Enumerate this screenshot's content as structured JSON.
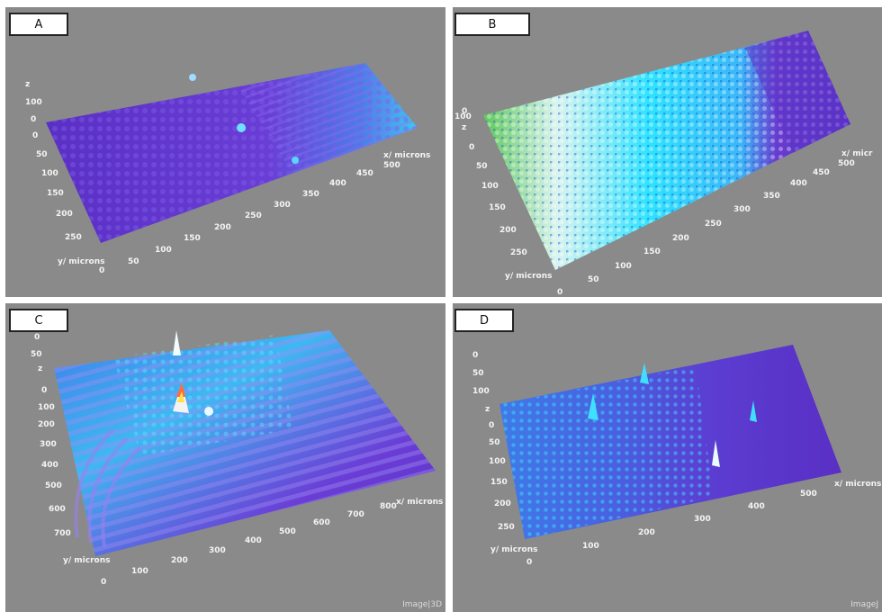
{
  "panels": {
    "a": {
      "label": "A",
      "z_axis_ticks": [
        "z",
        "100",
        "0"
      ],
      "y_axis_ticks": [
        "0",
        "50",
        "100",
        "150",
        "200",
        "250"
      ],
      "x_axis_ticks": [
        "0",
        "50",
        "100",
        "150",
        "200",
        "250",
        "300",
        "350",
        "400",
        "450",
        "500"
      ],
      "x_title": "x/ microns",
      "y_title": "y/ microns"
    },
    "b": {
      "label": "B",
      "z_axis_ticks": [
        "0",
        "100",
        "z",
        "0"
      ],
      "y_axis_ticks": [
        "50",
        "100",
        "150",
        "200",
        "250"
      ],
      "x_axis_ticks": [
        "0",
        "50",
        "100",
        "150",
        "200",
        "250",
        "300",
        "350",
        "400",
        "450",
        "500"
      ],
      "x_title": "x/ micr",
      "y_title": "y/ microns"
    },
    "c": {
      "label": "C",
      "z_axis_ticks": [
        "0",
        "50",
        "z",
        "0"
      ],
      "y_axis_ticks": [
        "100",
        "200",
        "300",
        "400",
        "500",
        "600",
        "700"
      ],
      "x_axis_ticks": [
        "0",
        "100",
        "200",
        "300",
        "400",
        "500",
        "600",
        "700",
        "800"
      ],
      "x_title": "x/ microns",
      "y_title": "y/ microns",
      "watermark": "Image|3D"
    },
    "d": {
      "label": "D",
      "z_axis_ticks": [
        "0",
        "50",
        "100",
        "z",
        "0"
      ],
      "y_axis_ticks": [
        "50",
        "100",
        "150",
        "200",
        "250"
      ],
      "x_axis_ticks": [
        "0",
        "100",
        "200",
        "300",
        "400",
        "500"
      ],
      "x_title": "x/ microns",
      "y_title": "y/ microns",
      "watermark": "ImageJ"
    }
  },
  "colors": {
    "background": "#8a8a8a",
    "surface_low": "#5b33c8",
    "surface_mid": "#3fa0ff",
    "surface_high": "#2ee6ff",
    "peak_white": "#f0f8ff",
    "peak_green": "#3fd23f"
  }
}
